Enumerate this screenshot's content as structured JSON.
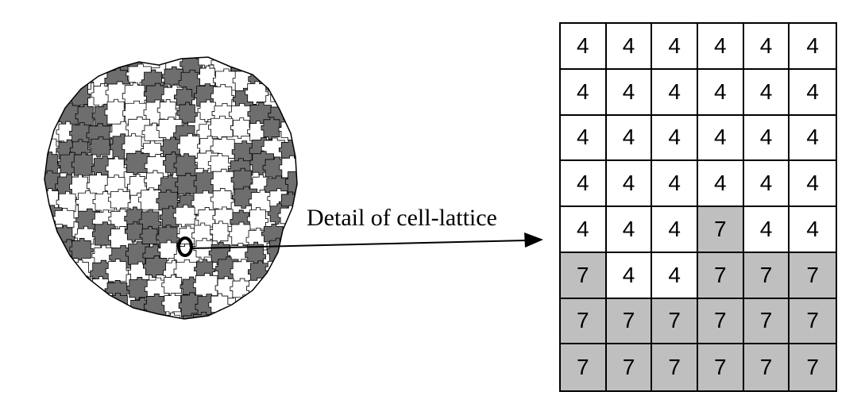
{
  "callout": {
    "label": "Detail of cell-lattice"
  },
  "colors": {
    "cell_a": "#ffffff",
    "cell_b": "#bfbfbf",
    "blob_dark": "#6e6e6e",
    "line": "#000000"
  },
  "lattice_detail": {
    "rows": [
      [
        "4",
        "4",
        "4",
        "4",
        "4",
        "4"
      ],
      [
        "4",
        "4",
        "4",
        "4",
        "4",
        "4"
      ],
      [
        "4",
        "4",
        "4",
        "4",
        "4",
        "4"
      ],
      [
        "4",
        "4",
        "4",
        "4",
        "4",
        "4"
      ],
      [
        "4",
        "4",
        "4",
        "7",
        "4",
        "4"
      ],
      [
        "7",
        "4",
        "4",
        "7",
        "7",
        "7"
      ],
      [
        "7",
        "7",
        "7",
        "7",
        "7",
        "7"
      ],
      [
        "7",
        "7",
        "7",
        "7",
        "7",
        "7"
      ]
    ]
  }
}
